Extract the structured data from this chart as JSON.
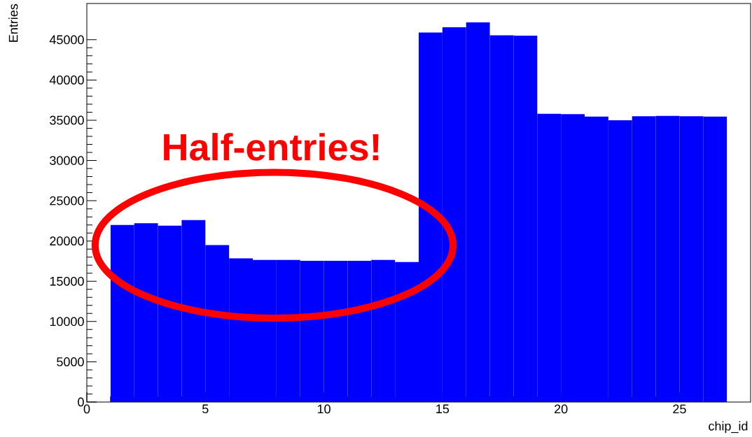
{
  "chart_data": {
    "type": "histogram",
    "xlabel": "chip_id",
    "ylabel": "Entries",
    "color": "#0000ff",
    "bins": [
      1,
      2,
      3,
      4,
      5,
      6,
      7,
      8,
      9,
      10,
      11,
      12,
      13,
      14,
      15,
      16,
      17,
      18,
      19,
      20,
      21,
      22,
      23,
      24,
      25,
      26,
      27
    ],
    "values": [
      22000,
      22200,
      21900,
      22600,
      19500,
      17850,
      17650,
      17650,
      17550,
      17550,
      17550,
      17650,
      17400,
      45900,
      46550,
      47150,
      45550,
      45500,
      35800,
      35750,
      35450,
      35000,
      35500,
      35550,
      35500,
      35450
    ],
    "xlim": [
      0,
      28
    ],
    "ylim": [
      0,
      49500
    ],
    "xticks": [
      0,
      5,
      10,
      15,
      20,
      25
    ],
    "yticks": [
      0,
      5000,
      10000,
      15000,
      20000,
      25000,
      30000,
      35000,
      40000,
      45000
    ],
    "grid": false,
    "annotations": [
      "Half-entries!"
    ]
  }
}
